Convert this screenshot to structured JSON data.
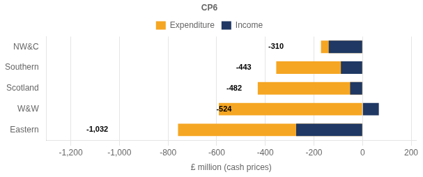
{
  "chart_data": {
    "type": "bar",
    "orientation": "horizontal",
    "title": "CP6",
    "categories": [
      "Eastern",
      "W&W",
      "Scotland",
      "Southern",
      "NW&C"
    ],
    "series": [
      {
        "name": "Expenditure",
        "color": "#F5A623",
        "values": [
          -759,
          -591,
          -431,
          -355,
          -171
        ]
      },
      {
        "name": "Income",
        "color": "#1F3864",
        "values": [
          -273,
          67,
          -51,
          -89,
          -139
        ]
      }
    ],
    "annotations": [
      {
        "text": "-1,032",
        "x": -1032,
        "y": "Eastern"
      },
      {
        "text": "-524",
        "x": -524,
        "y": "W&W"
      },
      {
        "text": "-482",
        "x": -482,
        "y": "Scotland"
      },
      {
        "text": "-443",
        "x": -443,
        "y": "Southern"
      },
      {
        "text": "-310",
        "x": -310,
        "y": "NW&C"
      }
    ],
    "x_label": "£ million (cash prices)",
    "xlim": [
      -1300,
      220
    ],
    "xticks": [
      {
        "value": -1200,
        "label": "-1,200"
      },
      {
        "value": -1000,
        "label": "-1,000"
      },
      -800,
      -600,
      -400,
      -200,
      0,
      200
    ],
    "grid": true,
    "legend": "top"
  }
}
